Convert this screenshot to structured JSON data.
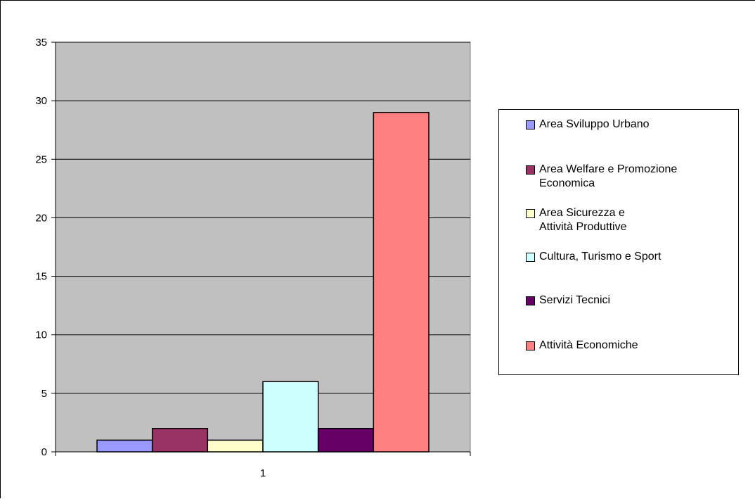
{
  "chart_data": {
    "type": "bar",
    "categories": [
      "1"
    ],
    "series": [
      {
        "name": "Area Sviluppo Urbano",
        "values": [
          1
        ],
        "color": "#9999ff"
      },
      {
        "name": "Area Welfare e Promozione\nEconomica",
        "values": [
          2
        ],
        "color": "#993366"
      },
      {
        "name": "Area Sicurezza e\nAttività Produttive",
        "values": [
          1
        ],
        "color": "#ffffcc"
      },
      {
        "name": "Cultura, Turismo e Sport",
        "values": [
          6
        ],
        "color": "#ccffff"
      },
      {
        "name": "Servizi Tecnici",
        "values": [
          2
        ],
        "color": "#660066"
      },
      {
        "name": "Attività Economiche",
        "values": [
          29
        ],
        "color": "#ff8080"
      }
    ],
    "y_ticks": [
      "0",
      "5",
      "10",
      "15",
      "20",
      "25",
      "30",
      "35"
    ],
    "ylim": [
      0,
      35
    ],
    "grid": true,
    "plot_background": "#c0c0c0",
    "legend_position": "right"
  }
}
